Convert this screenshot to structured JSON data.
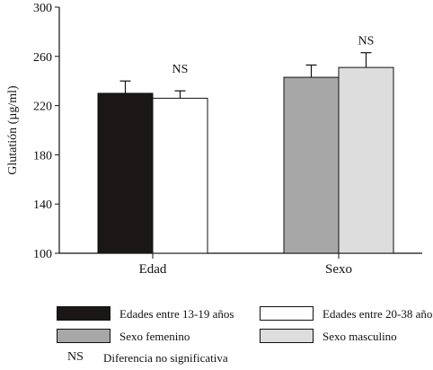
{
  "chart_data": {
    "type": "bar",
    "title": "",
    "xlabel": "",
    "ylabel": "Glutatión (µg/ml)",
    "ylim": [
      100,
      300
    ],
    "yticks": [
      100,
      140,
      180,
      220,
      260,
      300
    ],
    "grid": false,
    "legend_position": "bottom",
    "groups": [
      {
        "label": "Edad",
        "bars": [
          {
            "series": "Edades entre 13-19 años",
            "value": 230,
            "error": 10,
            "color": "#1b1717"
          },
          {
            "series": "Edades entre 20-38 años",
            "value": 226,
            "error": 6,
            "color": "#ffffff"
          }
        ],
        "annotation": "NS"
      },
      {
        "label": "Sexo",
        "bars": [
          {
            "series": "Sexo femenino",
            "value": 243,
            "error": 10,
            "color": "#a7a7a7"
          },
          {
            "series": "Sexo masculino",
            "value": 251,
            "error": 12,
            "color": "#dddddd"
          }
        ],
        "annotation": "NS"
      }
    ]
  },
  "legend": {
    "items": [
      {
        "label": "Edades entre 13-19 años",
        "color": "#1b1717"
      },
      {
        "label": "Edades entre 20-38 años",
        "color": "#ffffff"
      },
      {
        "label": "Sexo femenino",
        "color": "#a7a7a7"
      },
      {
        "label": "Sexo masculino",
        "color": "#dddddd"
      }
    ],
    "ns_symbol": "NS",
    "ns_label": "Diferencia no significativa"
  }
}
